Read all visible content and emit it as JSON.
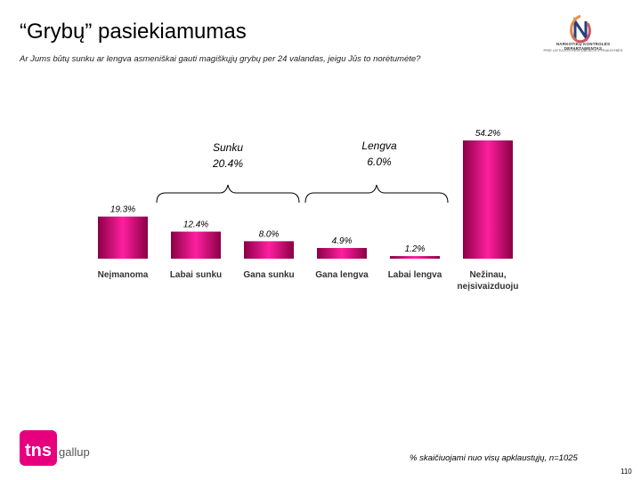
{
  "header": {
    "title": "“Grybų” pasiekiamumas",
    "subtitle": "Ar Jums būtų sunku ar lengva asmeniškai gauti magiškųjų grybų per 24 valandas, jeigu Jūs to norėtumėte?"
  },
  "logo": {
    "org_line1": "NARKOTIKŲ KONTROLĖS DEPARTAMENTAS",
    "org_line2": "PRIE LIETUVOS RESPUBLIKOS VYRIAUSYBĖS",
    "icon": "nkd-logo-icon"
  },
  "groups": {
    "hard": {
      "label": "Sunku",
      "value": "20.4%"
    },
    "easy": {
      "label": "Lengva",
      "value": "6.0%"
    }
  },
  "chart_data": {
    "type": "bar",
    "categories": [
      "Neįmanoma",
      "Labai sunku",
      "Gana sunku",
      "Gana lengva",
      "Labai lengva",
      "Nežinau, neįsivaizduoju"
    ],
    "category_lines": [
      [
        "Neįmanoma"
      ],
      [
        "Labai sunku"
      ],
      [
        "Gana sunku"
      ],
      [
        "Gana lengva"
      ],
      [
        "Labai lengva"
      ],
      [
        "Nežinau,",
        "neįsivaizduoju"
      ]
    ],
    "values": [
      19.3,
      12.4,
      8.0,
      4.9,
      1.2,
      54.2
    ],
    "value_labels": [
      "19.3%",
      "12.4%",
      "8.0%",
      "4.9%",
      "1.2%",
      "54.2%"
    ],
    "ylim": [
      0,
      54.2
    ],
    "grid": false,
    "bar_color_dark": "#8a0044",
    "bar_color_light": "#ff1fa0"
  },
  "footer": {
    "brand_left": "tns",
    "brand_right": "gallup",
    "note": "% skaičiuojami nuo visų apklaustųjų, n=1025",
    "page": "110"
  }
}
